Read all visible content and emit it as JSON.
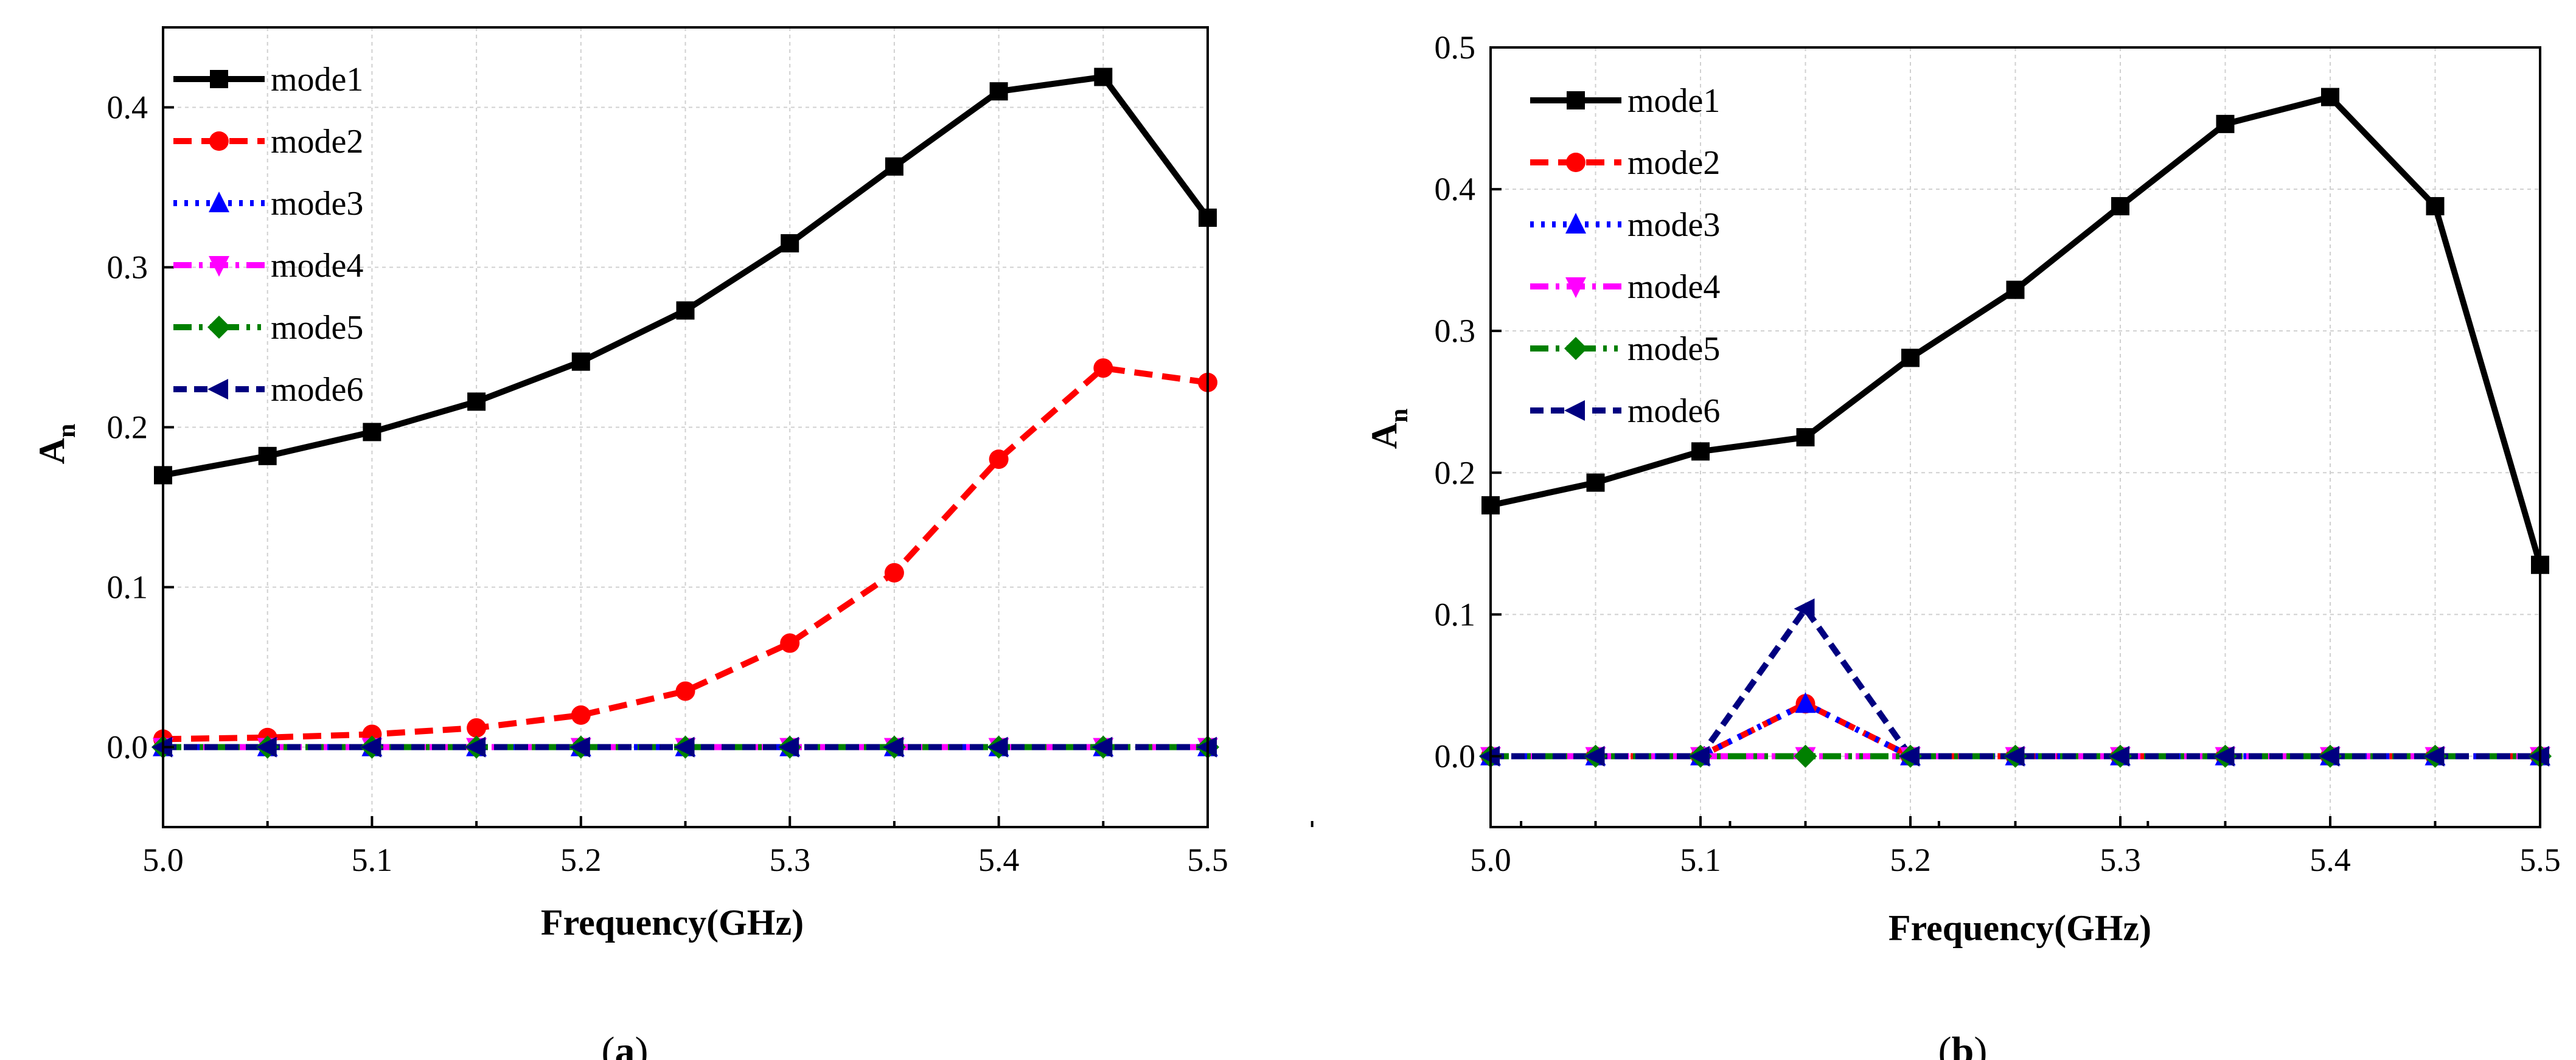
{
  "chart_data": [
    {
      "type": "line",
      "panel": "a",
      "caption": "a",
      "xlabel": "Frequency(GHz)",
      "ylabel": "A",
      "ylabel_sub": "n",
      "xlim": [
        5.0,
        5.5
      ],
      "ylim": [
        -0.05,
        0.45
      ],
      "xticks": [
        "5.0",
        "5.1",
        "5.2",
        "5.3",
        "5.4",
        "5.5"
      ],
      "yticks": [
        "0.0",
        "0.1",
        "0.2",
        "0.3",
        "0.4"
      ],
      "x": [
        5.0,
        5.05,
        5.1,
        5.15,
        5.2,
        5.25,
        5.3,
        5.35,
        5.4,
        5.45,
        5.5
      ],
      "grid": true,
      "legend": "top-left",
      "series": [
        {
          "name": "mode1",
          "color": "#000000",
          "dash": "",
          "marker": "square",
          "values": [
            0.17,
            0.182,
            0.197,
            0.216,
            0.241,
            0.273,
            0.315,
            0.363,
            0.41,
            0.419,
            0.331
          ]
        },
        {
          "name": "mode2",
          "color": "#ff0000",
          "dash": "30 16",
          "marker": "circle",
          "values": [
            0.005,
            0.006,
            0.008,
            0.012,
            0.02,
            0.035,
            0.065,
            0.109,
            0.18,
            0.237,
            0.228
          ]
        },
        {
          "name": "mode3",
          "color": "#0000ff",
          "dash": "6 12",
          "marker": "triangle-up",
          "values": [
            0,
            0,
            0,
            0,
            0,
            0,
            0,
            0,
            0,
            0,
            0
          ]
        },
        {
          "name": "mode4",
          "color": "#ff00ff",
          "dash": "30 12 6 12",
          "marker": "triangle-down",
          "values": [
            0,
            0,
            0,
            0,
            0,
            0,
            0,
            0,
            0,
            0,
            0
          ]
        },
        {
          "name": "mode5",
          "color": "#008000",
          "dash": "30 12 6 12 6 12",
          "marker": "diamond",
          "values": [
            0,
            0,
            0,
            0,
            0,
            0,
            0,
            0,
            0,
            0,
            0
          ]
        },
        {
          "name": "mode6",
          "color": "#000080",
          "dash": "22 12",
          "marker": "triangle-left",
          "values": [
            0,
            0,
            0,
            0,
            0,
            0,
            0,
            0,
            0,
            0,
            0
          ]
        }
      ]
    },
    {
      "type": "line",
      "panel": "b",
      "caption": "b",
      "xlabel": "Frequency(GHz)",
      "ylabel": "A",
      "ylabel_sub": "n",
      "xlim": [
        5.0,
        5.5
      ],
      "ylim": [
        -0.05,
        0.5
      ],
      "xticks": [
        "5.0",
        "5.1",
        "5.2",
        "5.3",
        "5.4",
        "5.5"
      ],
      "yticks": [
        "0.0",
        "0.1",
        "0.2",
        "0.3",
        "0.4",
        "0.5"
      ],
      "x": [
        5.0,
        5.05,
        5.1,
        5.15,
        5.2,
        5.25,
        5.3,
        5.35,
        5.4,
        5.45,
        5.5
      ],
      "grid": true,
      "legend": "top-left",
      "series": [
        {
          "name": "mode1",
          "color": "#000000",
          "dash": "",
          "marker": "square",
          "values": [
            0.177,
            0.193,
            0.215,
            0.225,
            0.281,
            0.329,
            0.388,
            0.446,
            0.465,
            0.388,
            0.135
          ]
        },
        {
          "name": "mode2",
          "color": "#ff0000",
          "dash": "30 16",
          "marker": "circle",
          "values": [
            0,
            0,
            0,
            0.037,
            0,
            0,
            0,
            0,
            0,
            0,
            0
          ]
        },
        {
          "name": "mode3",
          "color": "#0000ff",
          "dash": "6 12",
          "marker": "triangle-up",
          "values": [
            0,
            0,
            0,
            0.037,
            0,
            0,
            0,
            0,
            0,
            0,
            0
          ]
        },
        {
          "name": "mode4",
          "color": "#ff00ff",
          "dash": "30 12 6 12",
          "marker": "triangle-down",
          "values": [
            0,
            0,
            0,
            0,
            0,
            0,
            0,
            0,
            0,
            0,
            0
          ]
        },
        {
          "name": "mode5",
          "color": "#008000",
          "dash": "30 12 6 12 6 12",
          "marker": "diamond",
          "values": [
            0,
            0,
            0,
            0,
            0,
            0,
            0,
            0,
            0,
            0,
            0
          ]
        },
        {
          "name": "mode6",
          "color": "#000080",
          "dash": "22 12",
          "marker": "triangle-left",
          "values": [
            0,
            0,
            0,
            0.104,
            0,
            0,
            0,
            0,
            0,
            0,
            0
          ]
        }
      ]
    }
  ]
}
